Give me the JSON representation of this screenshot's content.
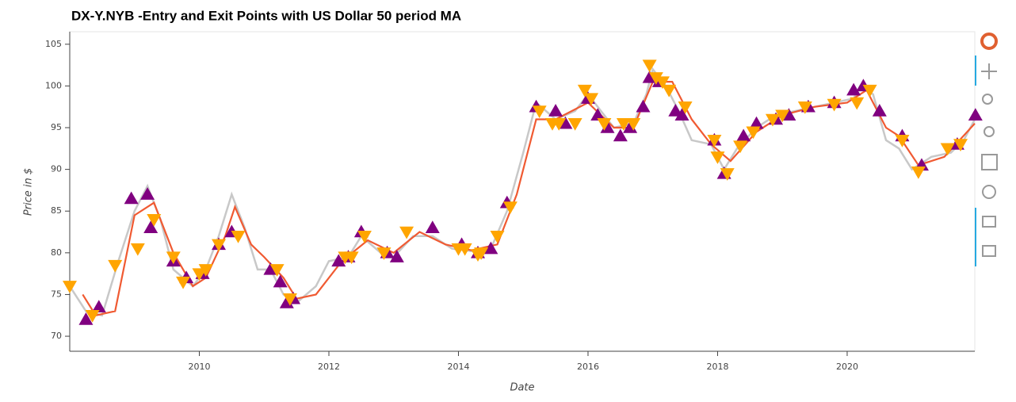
{
  "chart_data": {
    "type": "line",
    "title": "DX-Y.NYB -Entry and Exit Points with US Dollar 50 period MA",
    "x_label": "Date",
    "y_label": "Price in $",
    "xlim": [
      2008.0,
      2021.97
    ],
    "ylim": [
      68.2,
      106.5
    ],
    "xticks": [
      2010,
      2012,
      2014,
      2016,
      2018,
      2020
    ],
    "yticks": [
      70,
      75,
      80,
      85,
      90,
      95,
      100,
      105
    ],
    "grid": false,
    "series": [
      {
        "type": "line",
        "color": "#c8c8c8",
        "x": [
          2008.0,
          2008.25,
          2008.5,
          2008.75,
          2009.0,
          2009.2,
          2009.4,
          2009.6,
          2009.9,
          2010.1,
          2010.3,
          2010.5,
          2010.7,
          2010.9,
          2011.1,
          2011.3,
          2011.5,
          2011.8,
          2012.0,
          2012.3,
          2012.5,
          2012.8,
          2013.0,
          2013.3,
          2013.6,
          2013.9,
          2014.2,
          2014.5,
          2014.75,
          2015.0,
          2015.2,
          2015.5,
          2015.8,
          2016.0,
          2016.2,
          2016.4,
          2016.7,
          2016.9,
          2017.0,
          2017.2,
          2017.4,
          2017.6,
          2017.9,
          2018.1,
          2018.3,
          2018.6,
          2018.9,
          2019.2,
          2019.5,
          2019.8,
          2020.1,
          2020.2,
          2020.4,
          2020.6,
          2020.8,
          2021.0,
          2021.3,
          2021.6,
          2021.8,
          2021.97
        ],
        "values": [
          76,
          73,
          72.5,
          79,
          85,
          88,
          84,
          78,
          76,
          78,
          82,
          87,
          83,
          78,
          78,
          75,
          74,
          76,
          79,
          79.5,
          82,
          80,
          79.5,
          82,
          82,
          80.5,
          80.2,
          80.5,
          85,
          92,
          98,
          96,
          97,
          99,
          97,
          95,
          95.5,
          99,
          102,
          100,
          97,
          93.5,
          93,
          90,
          92.5,
          95,
          96.5,
          97,
          97.5,
          98,
          98.5,
          100,
          99,
          93.5,
          92.5,
          90,
          91.5,
          92,
          93.5,
          96
        ]
      },
      {
        "type": "line",
        "color": "#f05a32",
        "x": [
          2008.2,
          2008.4,
          2008.7,
          2009.0,
          2009.3,
          2009.6,
          2009.9,
          2010.1,
          2010.4,
          2010.55,
          2010.8,
          2011.0,
          2011.3,
          2011.5,
          2011.8,
          2012.2,
          2012.6,
          2013.0,
          2013.4,
          2013.8,
          2014.2,
          2014.6,
          2014.9,
          2015.2,
          2015.5,
          2016.0,
          2016.4,
          2016.7,
          2017.0,
          2017.3,
          2017.6,
          2017.9,
          2018.2,
          2018.6,
          2019.0,
          2019.5,
          2020.0,
          2020.3,
          2020.6,
          2020.8,
          2021.1,
          2021.5,
          2021.97
        ],
        "values": [
          75,
          72.5,
          73,
          84.5,
          86,
          80,
          76,
          77,
          82,
          85.5,
          81,
          79.5,
          77,
          74.5,
          75,
          79,
          81.5,
          80,
          82.5,
          81,
          80.3,
          81,
          87,
          96,
          96,
          98,
          95,
          95,
          100.5,
          100.5,
          96,
          93,
          91,
          94.5,
          96.5,
          97.5,
          98,
          99.5,
          95,
          94,
          90.5,
          91.5,
          95.5
        ]
      },
      {
        "type": "scatter",
        "marker": "triangle-up",
        "color": "#800080",
        "x": [
          2008.25,
          2008.45,
          2008.95,
          2009.2,
          2009.25,
          2009.6,
          2009.8,
          2010.05,
          2010.3,
          2010.5,
          2011.1,
          2011.25,
          2011.35,
          2011.45,
          2012.15,
          2012.3,
          2012.5,
          2012.9,
          2013.05,
          2013.6,
          2014.05,
          2014.3,
          2014.5,
          2014.75,
          2015.2,
          2015.5,
          2015.65,
          2016.0,
          2016.15,
          2016.3,
          2016.5,
          2016.65,
          2016.85,
          2016.95,
          2017.1,
          2017.35,
          2017.45,
          2017.95,
          2018.1,
          2018.4,
          2018.6,
          2018.9,
          2019.1,
          2019.4,
          2019.8,
          2020.1,
          2020.25,
          2020.5,
          2020.85,
          2021.15,
          2021.7,
          2021.98
        ],
        "values": [
          72,
          73.5,
          86.5,
          87,
          83,
          79,
          77,
          77.5,
          81,
          82.5,
          78,
          76.5,
          74,
          74.5,
          79,
          79.5,
          82.5,
          80,
          79.5,
          83,
          81,
          80,
          80.5,
          86,
          97.5,
          97,
          95.5,
          98.5,
          96.5,
          95,
          94,
          95,
          97.5,
          101,
          100.5,
          97,
          96.5,
          93.5,
          89.5,
          94,
          95.5,
          96,
          96.5,
          97.5,
          98,
          99.5,
          100,
          97,
          94,
          90.5,
          93,
          96.5
        ]
      },
      {
        "type": "scatter",
        "marker": "triangle-down",
        "color": "#ffa500",
        "x": [
          2008.0,
          2008.35,
          2008.7,
          2009.05,
          2009.3,
          2009.6,
          2009.75,
          2010.0,
          2010.1,
          2010.3,
          2010.6,
          2011.2,
          2011.4,
          2012.25,
          2012.35,
          2012.55,
          2012.85,
          2013.2,
          2014.0,
          2014.1,
          2014.3,
          2014.35,
          2014.6,
          2014.8,
          2015.25,
          2015.45,
          2015.55,
          2015.8,
          2015.95,
          2016.05,
          2016.25,
          2016.55,
          2016.7,
          2016.95,
          2017.05,
          2017.15,
          2017.25,
          2017.5,
          2017.95,
          2018.0,
          2018.15,
          2018.35,
          2018.55,
          2018.85,
          2019.0,
          2019.35,
          2019.8,
          2020.15,
          2020.35,
          2020.85,
          2021.1,
          2021.55,
          2021.75
        ],
        "values": [
          76,
          72.5,
          78.5,
          80.5,
          84,
          79.5,
          76.5,
          77.5,
          78,
          81,
          82,
          78,
          74.5,
          79.5,
          79.5,
          82,
          80,
          82.5,
          80.5,
          80.5,
          79.8,
          80,
          82,
          85.5,
          97,
          95.5,
          95.5,
          95.5,
          99.5,
          98.5,
          95.5,
          95.5,
          95.5,
          102.5,
          101,
          100.5,
          99.5,
          97.5,
          93.5,
          91.5,
          89.5,
          92.8,
          94.5,
          96,
          96.5,
          97.5,
          97.8,
          98,
          99.5,
          93.5,
          89.7,
          92.5,
          93
        ]
      }
    ]
  }
}
